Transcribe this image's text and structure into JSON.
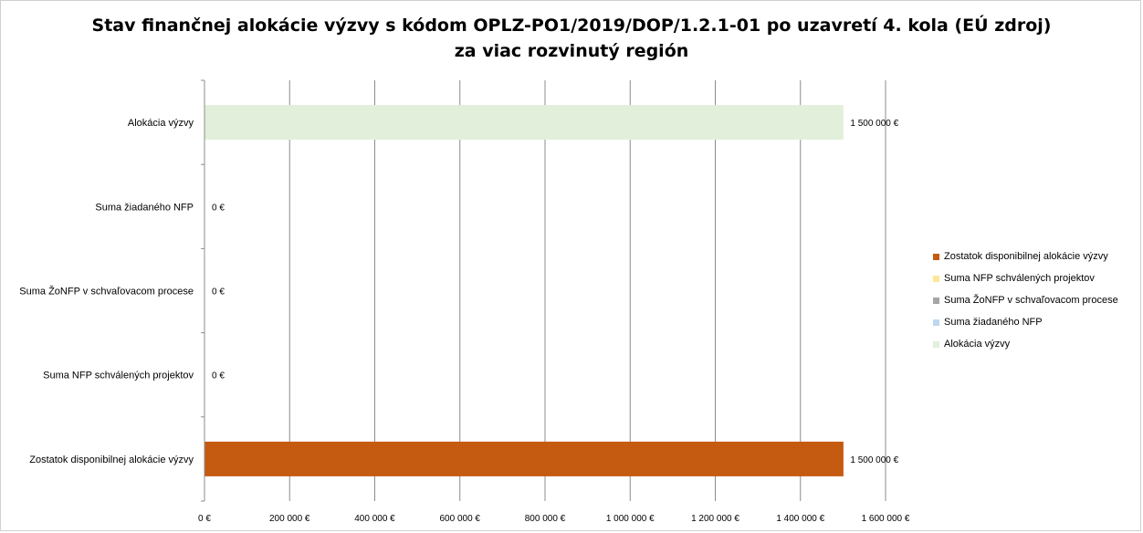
{
  "title_line1": "Stav finančnej alokácie výzvy s kódom OPLZ-PO1/2019/DOP/1.2.1-01 po uzavretí 4. kola (EÚ zdroj)",
  "title_line2": "za viac rozvinutý región",
  "chart_data": {
    "type": "bar",
    "orientation": "horizontal",
    "title": "Stav finančnej alokácie výzvy s kódom OPLZ-PO1/2019/DOP/1.2.1-01 po uzavretí 4. kola (EÚ zdroj) za viac rozvinutý región",
    "categories": [
      "Alokácia výzvy",
      "Suma žiadaného NFP",
      "Suma ŽoNFP v schvaľovacom procese",
      "Suma NFP schválených projektov",
      "Zostatok disponibilnej alokácie výzvy"
    ],
    "values": [
      1500000,
      0,
      0,
      0,
      1500000
    ],
    "value_labels": [
      "1 500 000 €",
      "0 €",
      "0 €",
      "0 €",
      "1 500 000 €"
    ],
    "bar_colors": [
      "#e2efda",
      "#bdd7ee",
      "#a6a6a6",
      "#ffe699",
      "#c55a11"
    ],
    "xlim": [
      0,
      1600000
    ],
    "xticks": [
      0,
      200000,
      400000,
      600000,
      800000,
      1000000,
      1200000,
      1400000,
      1600000
    ],
    "xtick_labels": [
      "0 €",
      "200 000 €",
      "400 000 €",
      "600 000 €",
      "800 000 €",
      "1 000 000 €",
      "1 200 000 €",
      "1 400 000 €",
      "1 600 000 €"
    ],
    "grid": "vertical",
    "legend_position": "right",
    "legend": [
      {
        "label": "Zostatok disponibilnej alokácie výzvy",
        "color": "#c55a11"
      },
      {
        "label": "Suma NFP schválených projektov",
        "color": "#ffe699"
      },
      {
        "label": "Suma ŽoNFP v schvaľovacom procese",
        "color": "#a6a6a6"
      },
      {
        "label": "Suma žiadaného NFP",
        "color": "#bdd7ee"
      },
      {
        "label": "Alokácia výzvy",
        "color": "#e2efda"
      }
    ]
  }
}
